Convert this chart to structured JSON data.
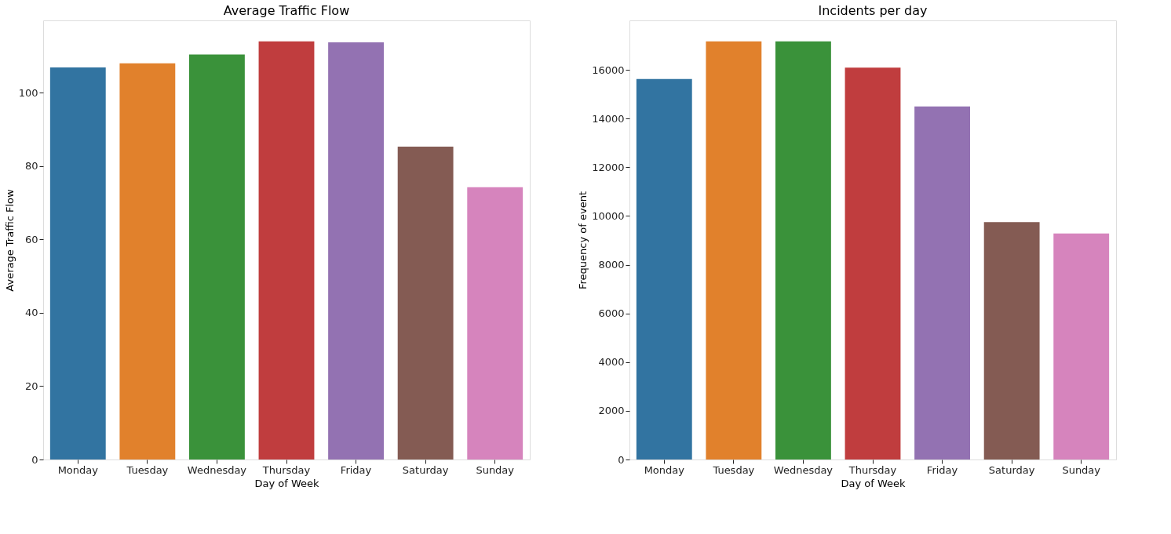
{
  "chart_data": [
    {
      "type": "bar",
      "title": "Average Traffic Flow",
      "xlabel": "Day of Week",
      "ylabel": "Average Traffic Flow",
      "categories": [
        "Monday",
        "Tuesday",
        "Wednesday",
        "Thursday",
        "Friday",
        "Saturday",
        "Sunday"
      ],
      "values": [
        106.9,
        108.0,
        110.4,
        114.0,
        113.7,
        85.3,
        74.2
      ],
      "colors": [
        "#3274a1",
        "#e1812c",
        "#3a923a",
        "#c03d3e",
        "#9372b2",
        "#845b53",
        "#d684bd"
      ],
      "ylim": [
        0,
        119.7
      ],
      "yticks": [
        0,
        20,
        40,
        60,
        80,
        100
      ],
      "grid": false
    },
    {
      "type": "bar",
      "title": "Incidents per day",
      "xlabel": "Day of Week",
      "ylabel": "Frequency of event",
      "categories": [
        "Monday",
        "Tuesday",
        "Wednesday",
        "Thursday",
        "Friday",
        "Saturday",
        "Sunday"
      ],
      "values": [
        15620,
        17170,
        17170,
        16090,
        14500,
        9750,
        9280
      ],
      "colors": [
        "#3274a1",
        "#e1812c",
        "#3a923a",
        "#c03d3e",
        "#9372b2",
        "#845b53",
        "#d684bd"
      ],
      "ylim": [
        0,
        18030
      ],
      "yticks": [
        0,
        2000,
        4000,
        6000,
        8000,
        10000,
        12000,
        14000,
        16000
      ],
      "grid": false
    }
  ]
}
